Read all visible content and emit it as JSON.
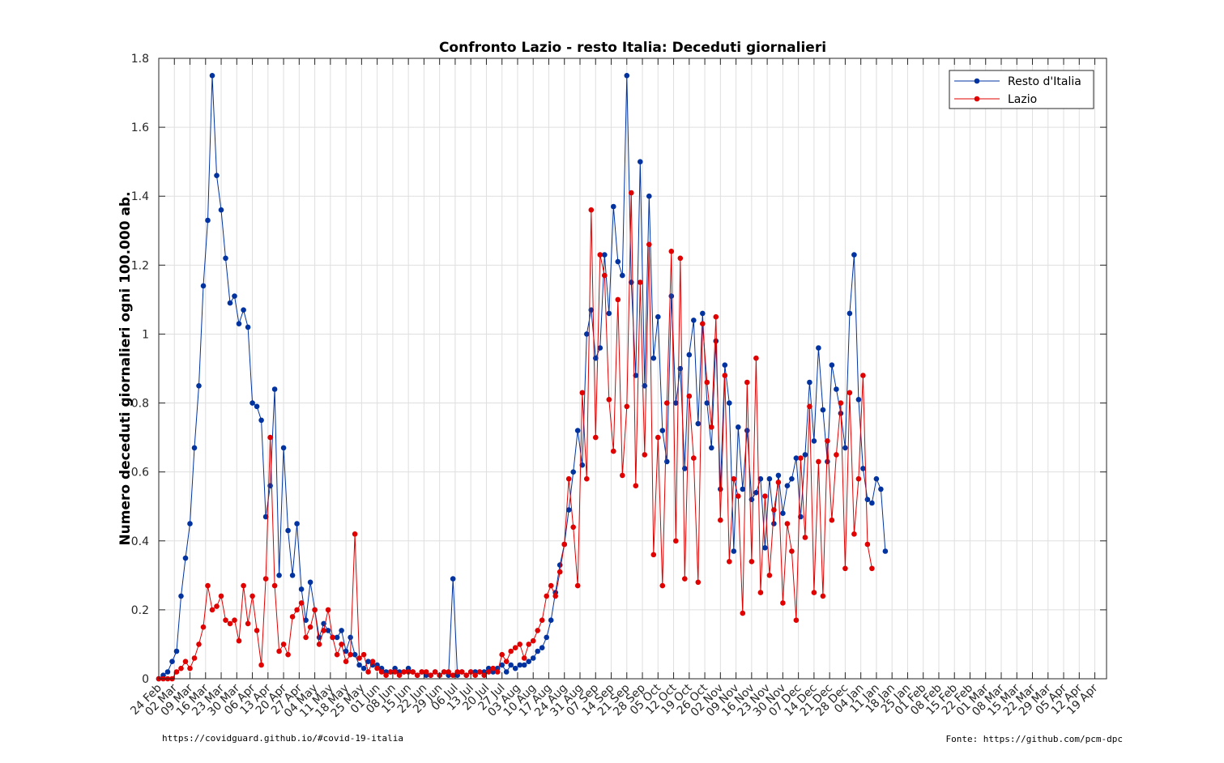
{
  "chart_data": {
    "type": "line",
    "title": "Confronto Lazio - resto Italia: Deceduti giornalieri",
    "ylabel": "Numero deceduti giornalieri ogni 100.000 ab.",
    "xlabel": "",
    "ylim": [
      0,
      1.8
    ],
    "yticks": [
      0,
      0.2,
      0.4,
      0.6,
      0.8,
      1,
      1.2,
      1.4,
      1.6,
      1.8
    ],
    "ytick_labels": [
      "0",
      "0.2",
      "0.4",
      "0.6",
      "0.8",
      "1",
      "1.2",
      "1.4",
      "1.6",
      "1.8"
    ],
    "xtick_labels": [
      "24 Feb",
      "02 Mar",
      "09 Mar",
      "16 Mar",
      "23 Mar",
      "30 Mar",
      "06 Apr",
      "13 Apr",
      "20 Apr",
      "27 Apr",
      "04 May",
      "11 May",
      "18 May",
      "25 May",
      "01 Jun",
      "08 Jun",
      "15 Jun",
      "22 Jun",
      "29 Jun",
      "06 Jul",
      "13 Jul",
      "20 Jul",
      "27 Jul",
      "03 Aug",
      "10 Aug",
      "17 Aug",
      "24 Aug",
      "31 Aug",
      "07 Sep",
      "14 Sep",
      "21 Sep",
      "28 Sep",
      "05 Oct",
      "12 Oct",
      "19 Oct",
      "26 Oct",
      "02 Nov",
      "09 Nov",
      "16 Nov",
      "23 Nov",
      "30 Nov",
      "07 Dec",
      "14 Dec",
      "21 Dec",
      "28 Dec",
      "04 Jan",
      "11 Jan",
      "18 Jan",
      "25 Jan",
      "01 Feb",
      "08 Feb",
      "15 Feb",
      "22 Feb",
      "01 Mar",
      "08 Mar",
      "15 Mar",
      "22 Mar",
      "29 Mar",
      "05 Apr",
      "12 Apr",
      "19 Apr"
    ],
    "grid": true,
    "legend_position": "top-right",
    "series": [
      {
        "name": "Resto d'Italia",
        "color": "#0033a0",
        "sampling": "every 2 days starting 24 Feb",
        "values": [
          0.0,
          0.01,
          0.02,
          0.05,
          0.08,
          0.24,
          0.35,
          0.45,
          0.67,
          0.85,
          1.14,
          1.33,
          1.75,
          1.46,
          1.36,
          1.22,
          1.09,
          1.11,
          1.03,
          1.07,
          1.02,
          0.8,
          0.79,
          0.75,
          0.47,
          0.56,
          0.84,
          0.3,
          0.67,
          0.43,
          0.3,
          0.45,
          0.26,
          0.17,
          0.28,
          0.2,
          0.12,
          0.16,
          0.14,
          0.12,
          0.12,
          0.14,
          0.08,
          0.12,
          0.07,
          0.04,
          0.03,
          0.05,
          0.04,
          0.04,
          0.03,
          0.02,
          0.02,
          0.03,
          0.02,
          0.02,
          0.03,
          0.02,
          0.01,
          0.02,
          0.01,
          0.01,
          0.02,
          0.01,
          0.02,
          0.01,
          0.29,
          0.01,
          0.02,
          0.01,
          0.02,
          0.02,
          0.02,
          0.02,
          0.03,
          0.02,
          0.03,
          0.04,
          0.02,
          0.04,
          0.03,
          0.04,
          0.04,
          0.05,
          0.06,
          0.08,
          0.09,
          0.12,
          0.17,
          0.25,
          0.33,
          0.39,
          0.49,
          0.6,
          0.72,
          0.62,
          1.0,
          1.07,
          0.93,
          0.96,
          1.23,
          1.06,
          1.37,
          1.21,
          1.17,
          1.75,
          1.15,
          0.88,
          1.5,
          0.85,
          1.4,
          0.93,
          1.05,
          0.72,
          0.63,
          1.11,
          0.8,
          0.9,
          0.61,
          0.94,
          1.04,
          0.74,
          1.06,
          0.8,
          0.67,
          0.98,
          0.55,
          0.91,
          0.8,
          0.37,
          0.73,
          0.55,
          0.72,
          0.52,
          0.54,
          0.58,
          0.38,
          0.58,
          0.45,
          0.59,
          0.48,
          0.56,
          0.58,
          0.64,
          0.47,
          0.65,
          0.86,
          0.69,
          0.96,
          0.78,
          0.63,
          0.91,
          0.84,
          0.77,
          0.67,
          1.06,
          1.23,
          0.81,
          0.61,
          0.52,
          0.51,
          0.58,
          0.55,
          0.37
        ]
      },
      {
        "name": "Lazio",
        "color": "#e00000",
        "sampling": "every 2 days starting 24 Feb",
        "values": [
          0.0,
          0.0,
          0.0,
          0.0,
          0.02,
          0.03,
          0.05,
          0.03,
          0.06,
          0.1,
          0.15,
          0.27,
          0.2,
          0.21,
          0.24,
          0.17,
          0.16,
          0.17,
          0.11,
          0.27,
          0.16,
          0.24,
          0.14,
          0.04,
          0.29,
          0.7,
          0.27,
          0.08,
          0.1,
          0.07,
          0.18,
          0.2,
          0.22,
          0.12,
          0.15,
          0.2,
          0.1,
          0.14,
          0.2,
          0.12,
          0.07,
          0.1,
          0.05,
          0.07,
          0.42,
          0.06,
          0.07,
          0.02,
          0.05,
          0.03,
          0.02,
          0.01,
          0.02,
          0.02,
          0.01,
          0.02,
          0.02,
          0.02,
          0.01,
          0.02,
          0.02,
          0.01,
          0.02,
          0.01,
          0.02,
          0.02,
          0.01,
          0.02,
          0.02,
          0.01,
          0.02,
          0.01,
          0.02,
          0.01,
          0.02,
          0.03,
          0.02,
          0.07,
          0.05,
          0.08,
          0.09,
          0.1,
          0.06,
          0.1,
          0.11,
          0.14,
          0.17,
          0.24,
          0.27,
          0.24,
          0.31,
          0.39,
          0.58,
          0.44,
          0.27,
          0.83,
          0.58,
          1.36,
          0.7,
          1.23,
          1.17,
          0.81,
          0.66,
          1.1,
          0.59,
          0.79,
          1.41,
          0.56,
          1.15,
          0.65,
          1.26,
          0.36,
          0.7,
          0.27,
          0.8,
          1.24,
          0.4,
          1.22,
          0.29,
          0.82,
          0.64,
          0.28,
          1.03,
          0.86,
          0.73,
          1.05,
          0.46,
          0.88,
          0.34,
          0.58,
          0.53,
          0.19,
          0.86,
          0.34,
          0.93,
          0.25,
          0.53,
          0.3,
          0.49,
          0.57,
          0.22,
          0.45,
          0.37,
          0.17,
          0.64,
          0.41,
          0.79,
          0.25,
          0.63,
          0.24,
          0.69,
          0.46,
          0.65,
          0.8,
          0.32,
          0.83,
          0.42,
          0.58,
          0.88,
          0.39,
          0.32
        ]
      }
    ]
  },
  "footer": {
    "left": "https://covidguard.github.io/#covid-19-italia",
    "right": "Fonte: https://github.com/pcm-dpc"
  }
}
